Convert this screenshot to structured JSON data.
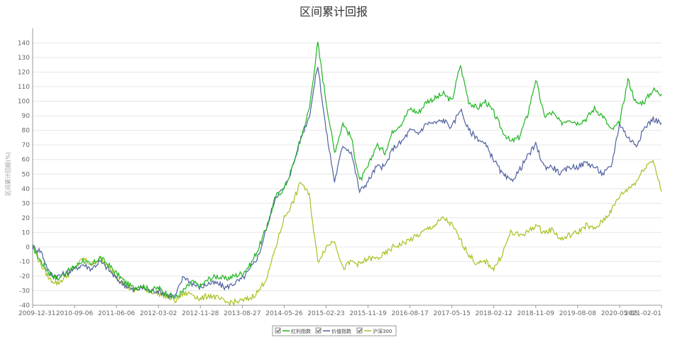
{
  "chart_data": {
    "type": "line",
    "title": "区间累计回报",
    "ylabel": "区间累计回报(%)",
    "xlabel": "",
    "ylim": [
      -40,
      150
    ],
    "yticks": [
      -40,
      -30,
      -20,
      -10,
      0,
      10,
      20,
      30,
      40,
      50,
      60,
      70,
      80,
      90,
      100,
      110,
      120,
      130,
      140
    ],
    "x_tick_labels": [
      "2009-12-31",
      "2010-09-06",
      "2011-06-06",
      "2012-03-02",
      "2012-11-28",
      "2013-08-27",
      "2014-05-26",
      "2015-02-23",
      "2015-11-19",
      "2016-08-17",
      "2017-05-15",
      "2018-02-12",
      "2018-11-09",
      "2019-08-08",
      "2020-05-05",
      "2021-02-01"
    ],
    "grid": true,
    "legend_position": "bottom",
    "series": [
      {
        "name": "红利指数",
        "color": "#1fb41f",
        "values": [
          0,
          -10,
          -18,
          -22,
          -17,
          -14,
          -9,
          -13,
          -7,
          -12,
          -18,
          -24,
          -28,
          -26,
          -30,
          -28,
          -32,
          -35,
          -30,
          -24,
          -27,
          -22,
          -20,
          -22,
          -20,
          -18,
          -12,
          0,
          15,
          35,
          40,
          55,
          75,
          95,
          140,
          100,
          65,
          85,
          75,
          45,
          55,
          70,
          65,
          80,
          85,
          95,
          92,
          100,
          102,
          105,
          100,
          125,
          100,
          95,
          100,
          92,
          80,
          72,
          75,
          90,
          115,
          90,
          92,
          85,
          88,
          85,
          88,
          95,
          90,
          80,
          85,
          115,
          98,
          100,
          108,
          105
        ]
      },
      {
        "name": "价值指数",
        "color": "#5060a0",
        "values": [
          0,
          -3,
          -18,
          -20,
          -18,
          -15,
          -12,
          -15,
          -10,
          -15,
          -22,
          -26,
          -30,
          -28,
          -30,
          -30,
          -33,
          -34,
          -20,
          -25,
          -28,
          -25,
          -25,
          -28,
          -25,
          -22,
          -15,
          -5,
          15,
          35,
          40,
          55,
          75,
          90,
          125,
          80,
          45,
          70,
          65,
          38,
          45,
          55,
          55,
          68,
          72,
          80,
          78,
          85,
          85,
          87,
          82,
          95,
          80,
          75,
          70,
          60,
          50,
          45,
          52,
          62,
          70,
          55,
          55,
          50,
          55,
          55,
          58,
          55,
          50,
          55,
          85,
          75,
          70,
          82,
          88,
          85
        ]
      },
      {
        "name": "沪深300",
        "color": "#a8c020",
        "values": [
          0,
          -12,
          -22,
          -25,
          -20,
          -15,
          -8,
          -12,
          -8,
          -14,
          -20,
          -26,
          -30,
          -28,
          -30,
          -32,
          -34,
          -37,
          -32,
          -32,
          -36,
          -33,
          -35,
          -38,
          -38,
          -37,
          -35,
          -30,
          -20,
          0,
          20,
          30,
          45,
          35,
          -10,
          0,
          5,
          -15,
          -10,
          -12,
          -8,
          -8,
          -5,
          0,
          2,
          5,
          8,
          12,
          15,
          20,
          15,
          5,
          -5,
          -12,
          -10,
          -15,
          -5,
          10,
          8,
          10,
          15,
          10,
          12,
          5,
          8,
          10,
          15,
          12,
          18,
          25,
          35,
          40,
          45,
          55,
          60,
          38
        ]
      }
    ]
  }
}
